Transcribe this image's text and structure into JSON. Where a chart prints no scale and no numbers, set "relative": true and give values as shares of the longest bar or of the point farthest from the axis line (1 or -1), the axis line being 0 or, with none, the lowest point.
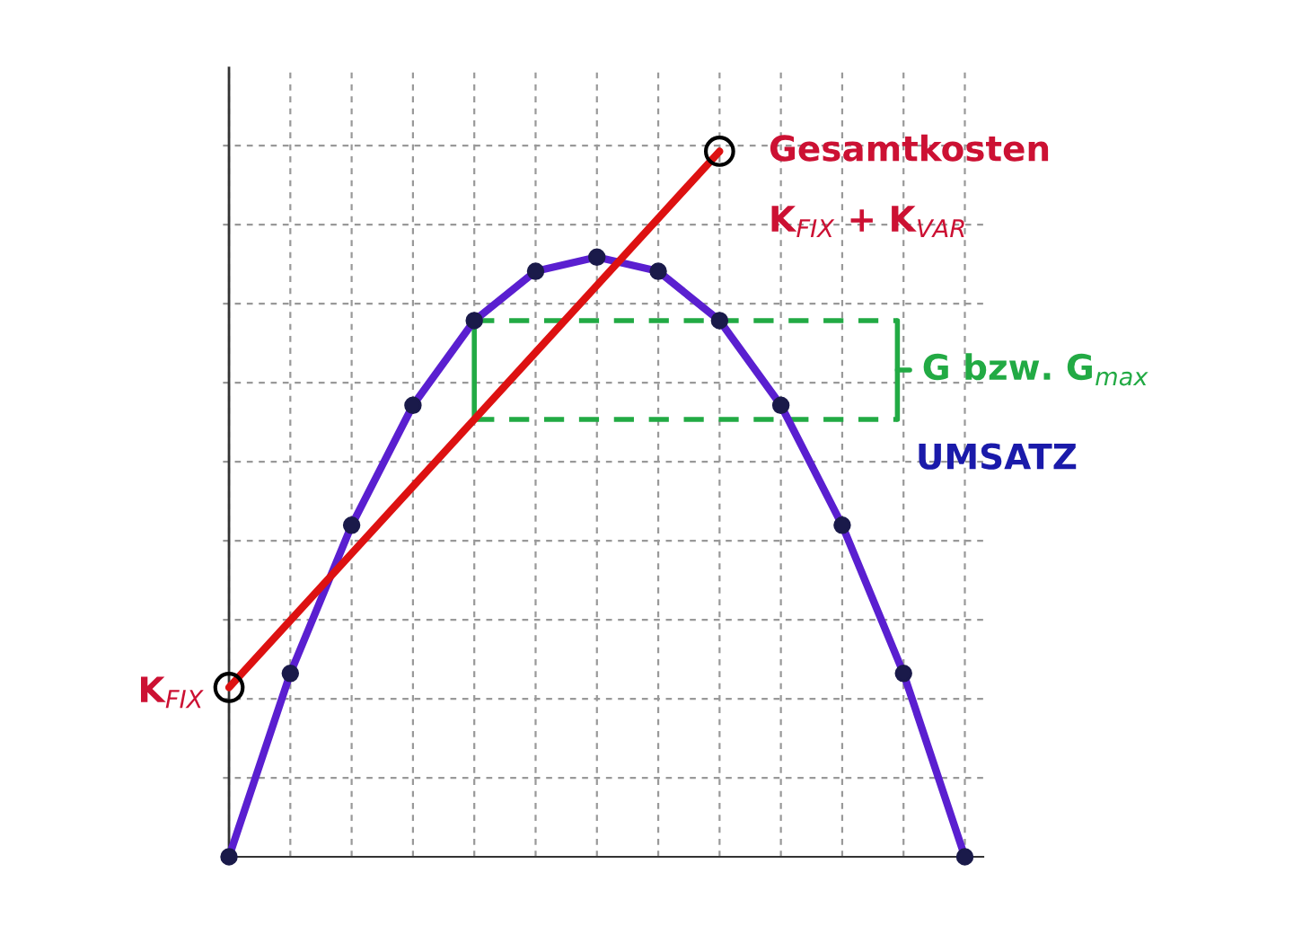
{
  "chart_data": {
    "type": "line",
    "relative": true,
    "categories": [
      null,
      null,
      null,
      null,
      null,
      null,
      null,
      null,
      null,
      null,
      null,
      null,
      null
    ],
    "series": [
      {
        "color": "#5a1fd0",
        "marker": "circle",
        "values": [
          0,
          0.26,
          0.47,
          0.64,
          0.76,
          0.83,
          0.85,
          0.83,
          0.76,
          0.64,
          0.47,
          0.26,
          0
        ]
      },
      {
        "color": "#dd1111",
        "marker": "none",
        "values": [
          0.24,
          0.335,
          0.43,
          0.525,
          0.62,
          0.715,
          0.81,
          0.905,
          1.0,
          null,
          null,
          null,
          null
        ]
      }
    ],
    "annotations": [
      "Gesamtkosten",
      "K$_{FIX}$ + K$_{VAR}$",
      "G bzw. G$_{max}$",
      "UMSATZ",
      "K$_{FIX}$"
    ],
    "grid": true,
    "tick_labels": false,
    "legend": false
  }
}
